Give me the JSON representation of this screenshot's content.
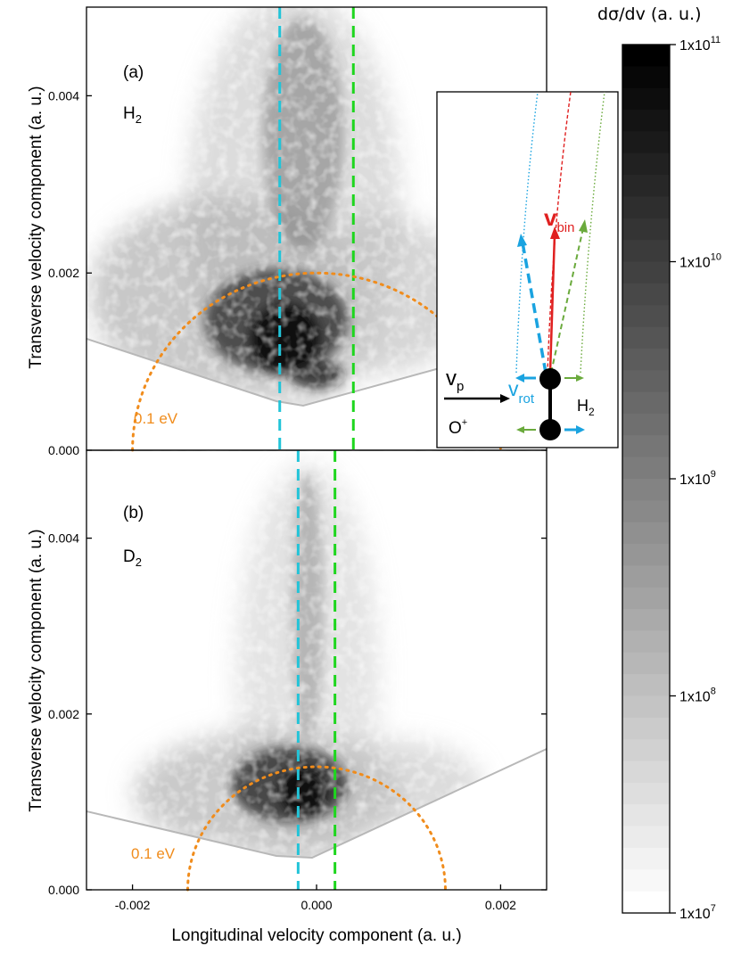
{
  "chart_data": [
    {
      "type": "heatmap",
      "panel_label": "(a)",
      "species_label": "H",
      "species_sub": "2",
      "xlim": [
        -0.0025,
        0.0025
      ],
      "ylim": [
        0.0,
        0.005
      ],
      "yticks": [
        {
          "value": 0.0,
          "label": "0.000"
        },
        {
          "value": 0.002,
          "label": "0.002"
        },
        {
          "value": 0.004,
          "label": "0.004"
        }
      ],
      "ylabel": "Transverse velocity component (a. u.)",
      "peak": {
        "x": -0.0003,
        "y": 0.0012
      },
      "vlines": [
        {
          "x": -0.0004,
          "color": "#22c4d8"
        },
        {
          "x": 0.0004,
          "color": "#1ed61e"
        }
      ],
      "arc": {
        "center_x": 0.0,
        "center_y": 0.0,
        "radius": 0.002,
        "color": "#f08c1c"
      },
      "arc_label": "0.1 eV"
    },
    {
      "type": "heatmap",
      "panel_label": "(b)",
      "species_label": "D",
      "species_sub": "2",
      "xlim": [
        -0.0025,
        0.0025
      ],
      "ylim": [
        0.0,
        0.005
      ],
      "xticks": [
        {
          "value": -0.002,
          "label": "-0.002"
        },
        {
          "value": 0.0,
          "label": "0.000"
        },
        {
          "value": 0.002,
          "label": "0.002"
        }
      ],
      "yticks": [
        {
          "value": 0.0,
          "label": "0.000"
        },
        {
          "value": 0.002,
          "label": "0.002"
        },
        {
          "value": 0.004,
          "label": "0.004"
        }
      ],
      "xlabel": "Longitudinal velocity component (a. u.)",
      "ylabel": "Transverse velocity component (a. u.)",
      "peak": {
        "x": -0.0002,
        "y": 0.0008
      },
      "vlines": [
        {
          "x": -0.0002,
          "color": "#22c4d8"
        },
        {
          "x": 0.0002,
          "color": "#1ed61e"
        }
      ],
      "arc": {
        "center_x": 0.0,
        "center_y": 0.0,
        "radius": 0.0014,
        "color": "#f08c1c"
      },
      "arc_label": "0.1 eV"
    }
  ],
  "colorbar": {
    "title": "dσ/dv (a. u.)",
    "scale": "log",
    "min": 10000000.0,
    "max": 100000000000.0,
    "ticks": [
      {
        "value": 100000000000.0,
        "base": "1x10",
        "exp": "11"
      },
      {
        "value": 10000000000.0,
        "base": "1x10",
        "exp": "10"
      },
      {
        "value": 1000000000.0,
        "base": "1x10",
        "exp": "9"
      },
      {
        "value": 100000000.0,
        "base": "1x10",
        "exp": "8"
      },
      {
        "value": 10000000.0,
        "base": "1x10",
        "exp": "7"
      }
    ]
  },
  "inset": {
    "v_bin": "v",
    "v_bin_sub": "bin",
    "v_rot": "v",
    "v_rot_sub": "rot",
    "v_p": "v",
    "v_p_sub": "p",
    "projectile": "O",
    "projectile_sup": "+",
    "molecule": "H",
    "molecule_sub": "2",
    "colors": {
      "bin": "#e02020",
      "rot": "#1aa3e0",
      "green": "#6aaa3c",
      "body": "#000000"
    }
  }
}
